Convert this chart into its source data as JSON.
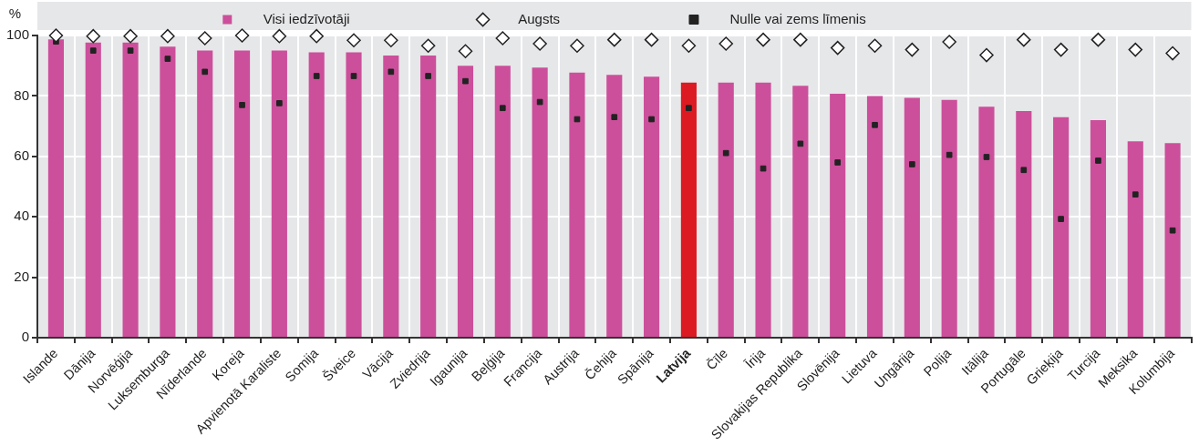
{
  "chart_data": {
    "type": "bar",
    "ylabel": "%",
    "categories": [
      "Islande",
      "Dānija",
      "Norvēģija",
      "Luksemburga",
      "Nīderlande",
      "Koreja",
      "Apvienotā Karaliste",
      "Somija",
      "Šveice",
      "Vācija",
      "Zviedrija",
      "Igaunija",
      "Beļģija",
      "Francija",
      "Austrija",
      "Čehija",
      "Spānija",
      "Latvija",
      "Čīle",
      "Īrija",
      "Slovakijas Republika",
      "Slovēnija",
      "Lietuva",
      "Ungārija",
      "Polija",
      "Itālija",
      "Portugāle",
      "Grieķija",
      "Turcija",
      "Meksika",
      "Kolumbija"
    ],
    "series": [
      {
        "name": "Visi iedzīvotāji",
        "color": "#cc4f9b",
        "colors": [
          "#cc4f9b",
          "#cc4f9b",
          "#cc4f9b",
          "#cc4f9b",
          "#cc4f9b",
          "#cc4f9b",
          "#cc4f9b",
          "#cc4f9b",
          "#cc4f9b",
          "#cc4f9b",
          "#cc4f9b",
          "#cc4f9b",
          "#cc4f9b",
          "#cc4f9b",
          "#cc4f9b",
          "#cc4f9b",
          "#cc4f9b",
          "#dc1a22",
          "#cc4f9b",
          "#cc4f9b",
          "#cc4f9b",
          "#cc4f9b",
          "#cc4f9b",
          "#cc4f9b",
          "#cc4f9b",
          "#cc4f9b",
          "#cc4f9b",
          "#cc4f9b",
          "#cc4f9b",
          "#cc4f9b",
          "#cc4f9b"
        ],
        "values": [
          98.7,
          97.7,
          97.7,
          96.3,
          95,
          95,
          95,
          94.4,
          94.4,
          93.4,
          93.4,
          90,
          90,
          89.4,
          87.7,
          87,
          86.4,
          84.4,
          84.4,
          84.4,
          83.4,
          80.7,
          80,
          79.4,
          78.7,
          76.4,
          75,
          73,
          72,
          65,
          64.4
        ]
      },
      {
        "name": "Augsts",
        "type": "scatter",
        "marker": "diamond",
        "color": "#222222",
        "x": [
          "Islande",
          "Dānija",
          "Norvēģija",
          "Luksemburga",
          "Nīderlande",
          "Koreja",
          "Apvienotā Karaliste",
          "Somija",
          "Šveice",
          "Vācija",
          "Zviedrija",
          "Igaunija",
          "Beļģija",
          "Francija",
          "Austrija",
          "Čehija",
          "Spānija",
          "Latvija",
          "Čīle",
          "Īrija",
          "Slovakijas Republika",
          "Slovēnija",
          "Lietuva",
          "Ungārija",
          "Polija",
          "Itālija",
          "Portugāle",
          "Grieķija",
          "Turcija",
          "Meksika",
          "Kolumbija"
        ],
        "values": [
          100,
          99.8,
          99.8,
          99.8,
          99.1,
          100,
          99.8,
          99.8,
          98.4,
          98.4,
          96.6,
          94.8,
          99.1,
          97.3,
          96.6,
          98.6,
          98.6,
          96.6,
          97.3,
          98.6,
          98.6,
          95.9,
          96.6,
          95.3,
          97.9,
          93.5,
          98.6,
          95.3,
          98.6,
          95.3,
          94.1
        ]
      },
      {
        "name": "Nulle vai zems līmenis",
        "type": "scatter",
        "marker": "square",
        "color": "#222222",
        "x": [
          "Islande",
          "Dānija",
          "Norvēģija",
          "Luksemburga",
          "Nīderlande",
          "Koreja",
          "Apvienotā Karaliste",
          "Somija",
          "Šveice",
          "Vācija",
          "Zviedrija",
          "Igaunija",
          "Beļģija",
          "Francija",
          "Austrija",
          "Čehija",
          "Spānija",
          "Latvija",
          "Čīle",
          "Īrija",
          "Slovakijas Republika",
          "Slovēnija",
          "Lietuva",
          "Ungārija",
          "Polija",
          "Itālija",
          "Portugāle",
          "Grieķija",
          "Turcija",
          "Meksika",
          "Kolumbija"
        ],
        "values": [
          98,
          95,
          95,
          92.3,
          88,
          77,
          77.6,
          86.6,
          86.6,
          88,
          86.6,
          84.9,
          76,
          78,
          72.3,
          73,
          72.3,
          76,
          61.1,
          56,
          64.2,
          58,
          70.4,
          57.4,
          60.5,
          59.8,
          55.5,
          39.3,
          58.6,
          47.4,
          35.5
        ]
      }
    ],
    "ylim": [
      0,
      100
    ],
    "yticks": [
      0,
      20,
      40,
      60,
      80,
      100
    ],
    "grid": true,
    "legend": "top"
  }
}
